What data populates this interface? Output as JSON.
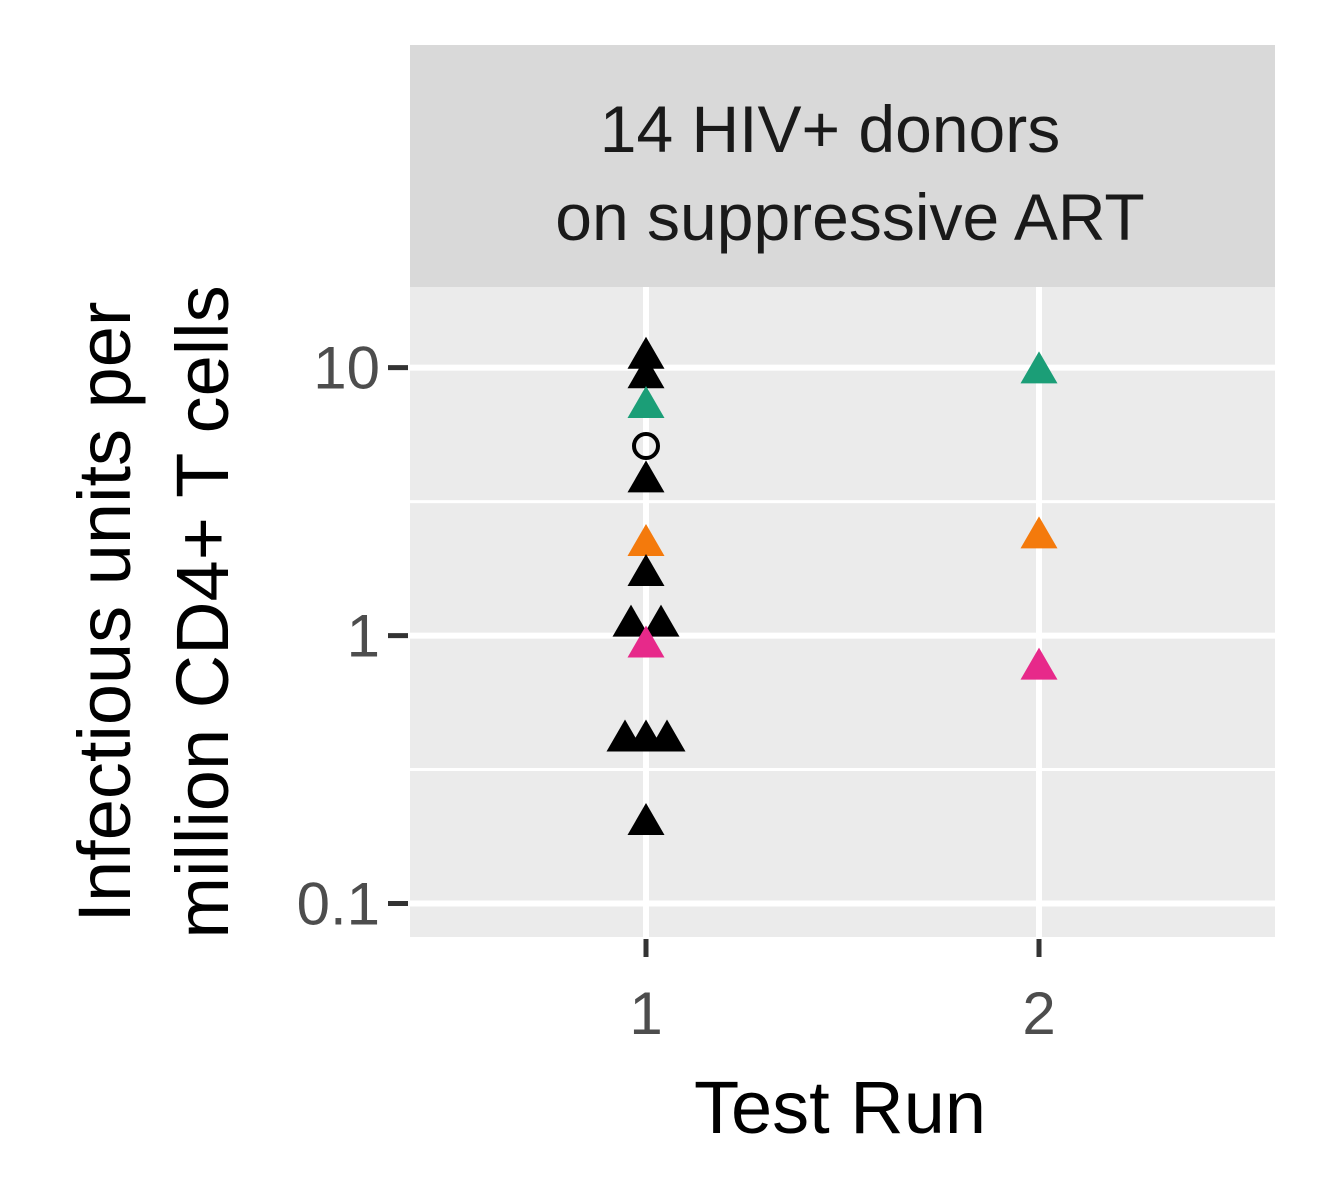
{
  "chart_data": {
    "type": "scatter",
    "facet_title": [
      "14 HIV+ donors",
      "on suppressive ART"
    ],
    "xlabel": "Test Run",
    "ylabel": [
      "Infectious units per",
      "million CD4+ T cells"
    ],
    "x_categories": [
      "1",
      "2"
    ],
    "y_scale": "log10",
    "ylim": [
      0.075,
      20
    ],
    "y_ticks": [
      {
        "value": 0.1,
        "label": "0.1"
      },
      {
        "value": 1,
        "label": "1"
      },
      {
        "value": 10,
        "label": "10"
      }
    ],
    "grid": true,
    "colors": {
      "black": "#000000",
      "teal": "#1b9e77",
      "orange": "#f47a0c",
      "pink": "#e7298a",
      "panel": "#ebebeb",
      "strip": "#d9d9d9",
      "gridline": "#ffffff"
    },
    "points": [
      {
        "x": 1,
        "dx": 0,
        "y": 11.0,
        "shape": "triangle",
        "color": "black"
      },
      {
        "x": 1,
        "dx": 0,
        "y": 9.3,
        "shape": "triangle",
        "color": "black"
      },
      {
        "x": 1,
        "dx": 0,
        "y": 7.2,
        "shape": "triangle",
        "color": "teal"
      },
      {
        "x": 1,
        "dx": 0,
        "y": 5.1,
        "shape": "circle-open",
        "color": "black"
      },
      {
        "x": 1,
        "dx": 0,
        "y": 3.8,
        "shape": "triangle",
        "color": "black"
      },
      {
        "x": 1,
        "dx": 0,
        "y": 2.2,
        "shape": "triangle",
        "color": "orange"
      },
      {
        "x": 1,
        "dx": 0,
        "y": 1.7,
        "shape": "triangle",
        "color": "black"
      },
      {
        "x": 1,
        "dx": -0.05,
        "y": 1.1,
        "shape": "triangle",
        "color": "black"
      },
      {
        "x": 1,
        "dx": 0.05,
        "y": 1.1,
        "shape": "triangle",
        "color": "black"
      },
      {
        "x": 1,
        "dx": 0,
        "y": 0.92,
        "shape": "triangle",
        "color": "pink"
      },
      {
        "x": 1,
        "dx": -0.07,
        "y": 0.41,
        "shape": "triangle",
        "color": "black"
      },
      {
        "x": 1,
        "dx": 0,
        "y": 0.41,
        "shape": "triangle",
        "color": "black"
      },
      {
        "x": 1,
        "dx": 0.07,
        "y": 0.41,
        "shape": "triangle",
        "color": "black"
      },
      {
        "x": 1,
        "dx": 0,
        "y": 0.2,
        "shape": "triangle",
        "color": "black"
      },
      {
        "x": 2,
        "dx": 0,
        "y": 9.7,
        "shape": "triangle",
        "color": "teal"
      },
      {
        "x": 2,
        "dx": 0,
        "y": 2.35,
        "shape": "triangle",
        "color": "orange"
      },
      {
        "x": 2,
        "dx": 0,
        "y": 0.76,
        "shape": "triangle",
        "color": "pink"
      }
    ]
  }
}
